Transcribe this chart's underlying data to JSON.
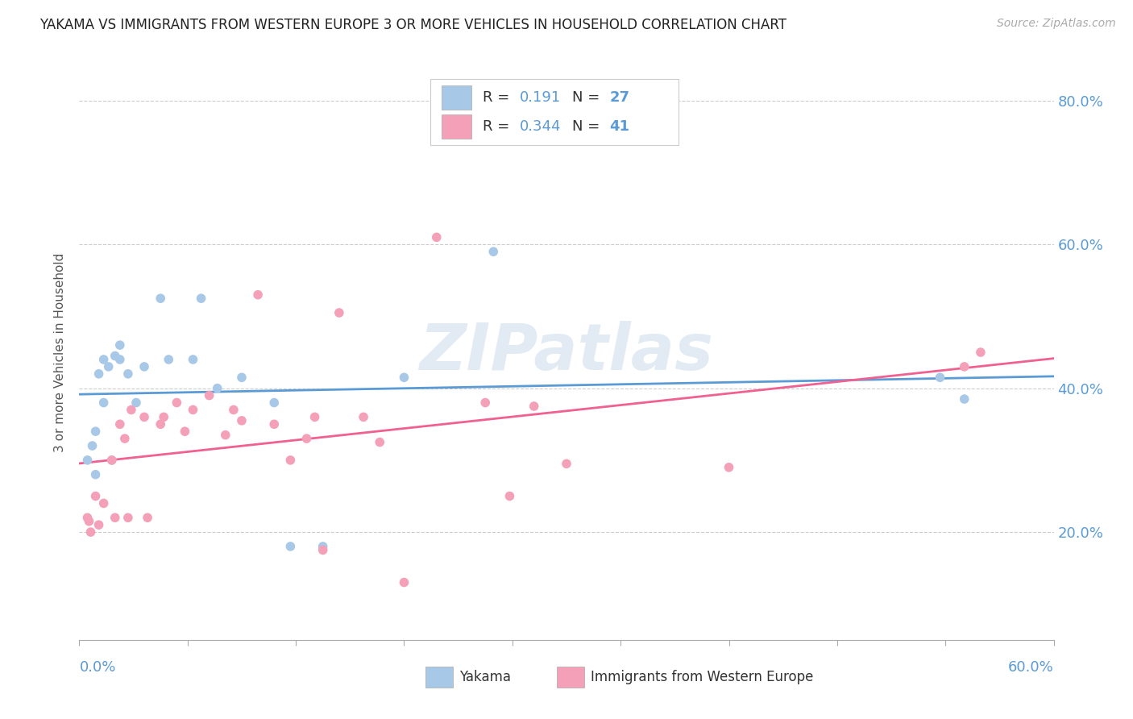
{
  "title": "YAKAMA VS IMMIGRANTS FROM WESTERN EUROPE 3 OR MORE VEHICLES IN HOUSEHOLD CORRELATION CHART",
  "source": "Source: ZipAtlas.com",
  "ylabel": "3 or more Vehicles in Household",
  "xmin": 0.0,
  "xmax": 0.6,
  "ymin": 0.05,
  "ymax": 0.85,
  "color_blue": "#a8c8e8",
  "color_pink": "#f4a0b8",
  "line_color_blue": "#5b9bd5",
  "line_color_pink": "#f06090",
  "watermark": "ZIPatlas",
  "yakama_x": [
    0.005,
    0.008,
    0.01,
    0.01,
    0.012,
    0.015,
    0.015,
    0.018,
    0.02,
    0.022,
    0.025,
    0.025,
    0.03,
    0.035,
    0.04,
    0.05,
    0.055,
    0.07,
    0.075,
    0.085,
    0.1,
    0.12,
    0.13,
    0.15,
    0.2,
    0.255,
    0.53,
    0.545
  ],
  "yakama_y": [
    0.3,
    0.32,
    0.28,
    0.34,
    0.42,
    0.38,
    0.44,
    0.43,
    0.3,
    0.445,
    0.44,
    0.46,
    0.42,
    0.38,
    0.43,
    0.525,
    0.44,
    0.44,
    0.525,
    0.4,
    0.415,
    0.38,
    0.18,
    0.18,
    0.415,
    0.59,
    0.415,
    0.385
  ],
  "immigrants_x": [
    0.005,
    0.006,
    0.007,
    0.01,
    0.012,
    0.015,
    0.02,
    0.022,
    0.025,
    0.028,
    0.03,
    0.032,
    0.04,
    0.042,
    0.05,
    0.052,
    0.06,
    0.065,
    0.07,
    0.08,
    0.09,
    0.095,
    0.1,
    0.11,
    0.12,
    0.13,
    0.14,
    0.145,
    0.15,
    0.16,
    0.175,
    0.185,
    0.2,
    0.22,
    0.25,
    0.265,
    0.28,
    0.3,
    0.4,
    0.545,
    0.555
  ],
  "immigrants_y": [
    0.22,
    0.215,
    0.2,
    0.25,
    0.21,
    0.24,
    0.3,
    0.22,
    0.35,
    0.33,
    0.22,
    0.37,
    0.36,
    0.22,
    0.35,
    0.36,
    0.38,
    0.34,
    0.37,
    0.39,
    0.335,
    0.37,
    0.355,
    0.53,
    0.35,
    0.3,
    0.33,
    0.36,
    0.175,
    0.505,
    0.36,
    0.325,
    0.13,
    0.61,
    0.38,
    0.25,
    0.375,
    0.295,
    0.29,
    0.43,
    0.45
  ],
  "ytick_vals": [
    0.2,
    0.4,
    0.6,
    0.8
  ],
  "ytick_labels": [
    "20.0%",
    "40.0%",
    "60.0%",
    "80.0%"
  ]
}
